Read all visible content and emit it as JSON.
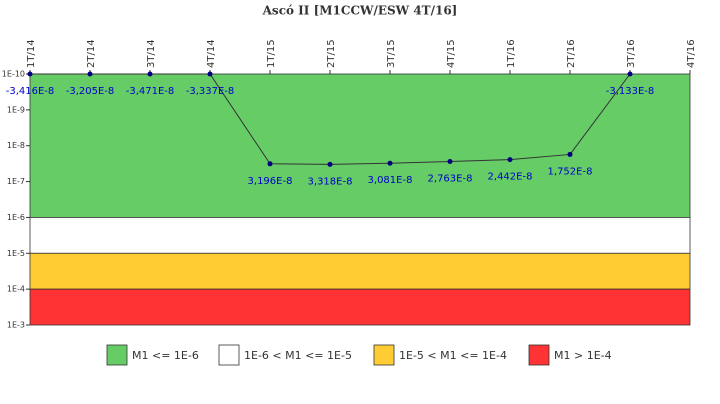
{
  "chart_data": {
    "type": "line",
    "title": "Ascó II [M1CCW/ESW 4T/16]",
    "categories": [
      "1T/14",
      "2T/14",
      "3T/14",
      "4T/14",
      "1T/15",
      "2T/15",
      "3T/15",
      "4T/15",
      "1T/16",
      "2T/16",
      "3T/16",
      "4T/16"
    ],
    "series": [
      {
        "name": "M1CCW/ESW",
        "color": "#000080",
        "line_color": "#333333",
        "values": [
          -3.416e-08,
          -3.205e-08,
          -3.471e-08,
          -3.337e-08,
          3.196e-08,
          3.318e-08,
          3.081e-08,
          2.763e-08,
          2.442e-08,
          1.752e-08,
          -3.133e-08,
          null
        ],
        "value_labels": [
          "-3,416E-8",
          "-3,205E-8",
          "-3,471E-8",
          "-3,337E-8",
          "3,196E-8",
          "3,318E-8",
          "3,081E-8",
          "2,763E-8",
          "2,442E-8",
          "1,752E-8",
          "-3,133E-8",
          null
        ]
      }
    ],
    "log_scale": true,
    "y_inverted": true,
    "ylim": [
      1e-10,
      0.001
    ],
    "yticks": [
      {
        "value": 1e-10,
        "label": "1E-10"
      },
      {
        "value": 1e-09,
        "label": "1E-9"
      },
      {
        "value": 1e-08,
        "label": "1E-8"
      },
      {
        "value": 1e-07,
        "label": "1E-7"
      },
      {
        "value": 1e-06,
        "label": "1E-6"
      },
      {
        "value": 1e-05,
        "label": "1E-5"
      },
      {
        "value": 0.0001,
        "label": "1E-4"
      },
      {
        "value": 0.001,
        "label": "1E-3"
      }
    ],
    "bands": [
      {
        "name": "M1 <= 1E-6",
        "color": "#66cc66",
        "from": 1e-10,
        "to": 1e-06
      },
      {
        "name": "1E-6 < M1 <= 1E-5",
        "color": "#ffffff",
        "from": 1e-06,
        "to": 1e-05
      },
      {
        "name": "1E-5 < M1 <= 1E-4",
        "color": "#ffcc33",
        "from": 1e-05,
        "to": 0.0001
      },
      {
        "name": "M1 > 1E-4",
        "color": "#ff3333",
        "from": 0.0001,
        "to": 0.001
      }
    ]
  }
}
